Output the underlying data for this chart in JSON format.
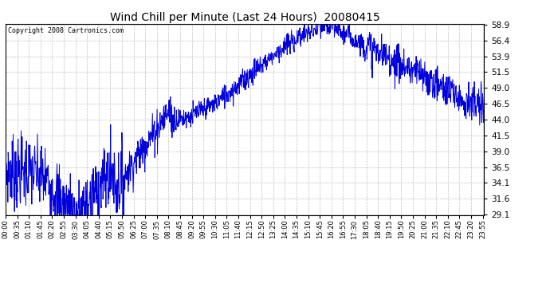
{
  "title": "Wind Chill per Minute (Last 24 Hours)  20080415",
  "copyright": "Copyright 2008 Cartronics.com",
  "line_color": "#0000dd",
  "background_color": "#ffffff",
  "grid_color": "#bbbbbb",
  "yticks": [
    29.1,
    31.6,
    34.1,
    36.5,
    39.0,
    41.5,
    44.0,
    46.5,
    49.0,
    51.5,
    53.9,
    56.4,
    58.9
  ],
  "ymin": 29.1,
  "ymax": 58.9,
  "xtick_labels": [
    "00:00",
    "00:35",
    "01:10",
    "01:45",
    "02:20",
    "02:55",
    "03:30",
    "04:05",
    "04:40",
    "05:15",
    "05:50",
    "06:25",
    "07:00",
    "07:35",
    "08:10",
    "08:45",
    "09:20",
    "09:55",
    "10:30",
    "11:05",
    "11:40",
    "12:15",
    "12:50",
    "13:25",
    "14:00",
    "14:35",
    "15:10",
    "15:45",
    "16:20",
    "16:55",
    "17:30",
    "18:05",
    "18:40",
    "19:15",
    "19:50",
    "20:25",
    "21:00",
    "21:35",
    "22:10",
    "22:45",
    "23:20",
    "23:55"
  ],
  "seed": 7,
  "figwidth": 6.9,
  "figheight": 3.75,
  "dpi": 100
}
